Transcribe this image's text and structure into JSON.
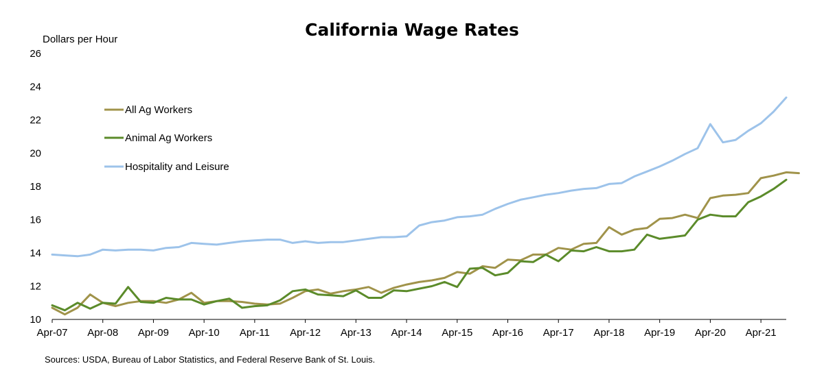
{
  "chart_data": {
    "type": "line",
    "title": "California Wage Rates",
    "ylabel": "Dollars per Hour",
    "xlabel": "",
    "ylim": [
      10,
      26
    ],
    "yticks": [
      "10",
      "12",
      "14",
      "16",
      "18",
      "20",
      "22",
      "24",
      "26"
    ],
    "xticks": [
      "Apr-07",
      "Apr-08",
      "Apr-09",
      "Apr-10",
      "Apr-11",
      "Apr-12",
      "Apr-13",
      "Apr-14",
      "Apr-15",
      "Apr-16",
      "Apr-17",
      "Apr-18",
      "Apr-19",
      "Apr-20",
      "Apr-21"
    ],
    "grid": false,
    "legend_position": "upper-left",
    "source": "Sources: USDA, Bureau of Labor Statistics, and Federal Reserve Bank of St. Louis.",
    "x_first": "Apr-07",
    "x_step_quarters": 1,
    "series": [
      {
        "name": "All Ag Workers",
        "color": "#a0934a",
        "values": [
          10.7,
          10.3,
          10.7,
          11.5,
          11.0,
          10.8,
          11.0,
          11.1,
          11.1,
          11.0,
          11.2,
          11.6,
          11.0,
          11.1,
          11.1,
          11.05,
          10.95,
          10.9,
          10.95,
          11.3,
          11.7,
          11.8,
          11.55,
          11.7,
          11.8,
          11.95,
          11.6,
          11.9,
          12.1,
          12.25,
          12.35,
          12.5,
          12.85,
          12.75,
          13.2,
          13.1,
          13.6,
          13.55,
          13.9,
          13.9,
          14.3,
          14.2,
          14.55,
          14.6,
          15.55,
          15.1,
          15.4,
          15.5,
          16.05,
          16.1,
          16.3,
          16.1,
          17.3,
          17.45,
          17.5,
          17.6,
          18.5,
          18.65,
          18.85,
          18.8
        ]
      },
      {
        "name": "Animal Ag Workers",
        "color": "#5b8b2a",
        "values": [
          10.85,
          10.55,
          11.0,
          10.65,
          11.0,
          10.95,
          11.95,
          11.05,
          11.0,
          11.3,
          11.2,
          11.2,
          10.9,
          11.1,
          11.25,
          10.7,
          10.8,
          10.85,
          11.15,
          11.7,
          11.8,
          11.5,
          11.45,
          11.4,
          11.75,
          11.3,
          11.3,
          11.75,
          11.7,
          11.85,
          12.0,
          12.25,
          11.95,
          13.05,
          13.1,
          12.65,
          12.8,
          13.5,
          13.45,
          13.9,
          13.5,
          14.15,
          14.1,
          14.35,
          14.1,
          14.1,
          14.2,
          15.1,
          14.85,
          14.95,
          15.05,
          16.0,
          16.3,
          16.2,
          16.2,
          17.05,
          17.4,
          17.85,
          18.4
        ]
      },
      {
        "name": "Hospitality and Leisure",
        "color": "#9dc3ea",
        "values": [
          13.9,
          13.85,
          13.8,
          13.9,
          14.2,
          14.15,
          14.2,
          14.2,
          14.15,
          14.3,
          14.35,
          14.6,
          14.55,
          14.5,
          14.6,
          14.7,
          14.75,
          14.8,
          14.8,
          14.6,
          14.7,
          14.6,
          14.65,
          14.65,
          14.75,
          14.85,
          14.95,
          14.95,
          15.0,
          15.65,
          15.85,
          15.95,
          16.15,
          16.2,
          16.3,
          16.65,
          16.95,
          17.2,
          17.35,
          17.5,
          17.6,
          17.75,
          17.85,
          17.9,
          18.15,
          18.2,
          18.6,
          18.9,
          19.2,
          19.55,
          19.95,
          20.3,
          21.75,
          20.65,
          20.8,
          21.35,
          21.8,
          22.5,
          23.35
        ]
      }
    ]
  }
}
